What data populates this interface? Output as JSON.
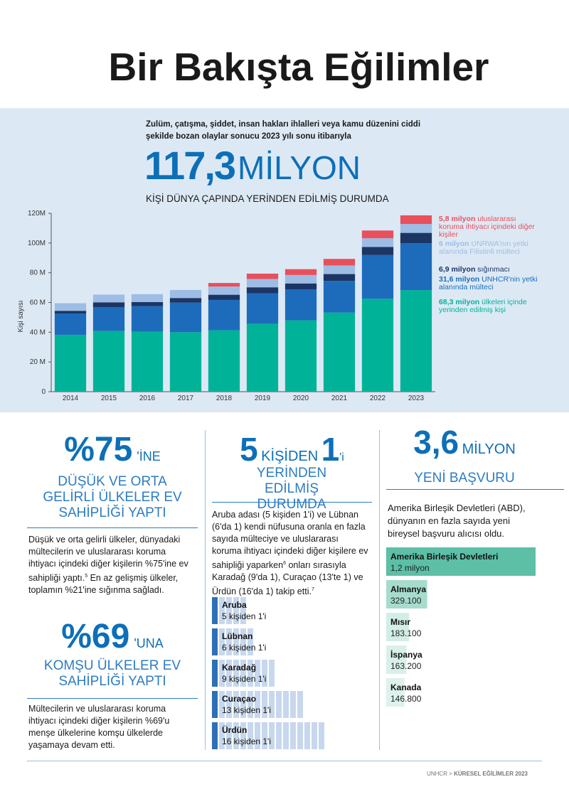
{
  "page": {
    "title": "Bir Bakışta Eğilimler"
  },
  "headline": {
    "intro": "Zulüm, çatışma, şiddet, insan hakları ihlalleri veya kamu düzenini ciddi şekilde bozan olaylar sonucu 2023 yılı sonu itibarıyla",
    "number": "117,3",
    "unit": "MİLYON",
    "caption": "KİŞİ DÜNYA ÇAPINDA YERİNDEN EDİLMİŞ DURUMDA"
  },
  "chart_data": {
    "type": "stacked_bar",
    "ylabel": "Kişi sayısı",
    "categories": [
      "2014",
      "2015",
      "2016",
      "2017",
      "2018",
      "2019",
      "2020",
      "2021",
      "2022",
      "2023"
    ],
    "series": [
      {
        "name": "ülkeleri içinde yerinden edilmiş kişi",
        "color": "#00b398",
        "values": [
          38.2,
          40.8,
          40.3,
          40.0,
          41.3,
          45.7,
          48.0,
          53.2,
          62.5,
          68.3
        ],
        "value_labels": [
          null,
          null,
          null,
          null,
          null,
          null,
          null,
          null,
          null,
          "68,3 milyon"
        ]
      },
      {
        "name": "UNHCR'nin yetki alanında mülteci",
        "color": "#1d6cbc",
        "values": [
          14.4,
          16.1,
          17.2,
          19.9,
          20.4,
          20.4,
          20.7,
          21.3,
          29.4,
          31.6
        ],
        "value_labels": [
          null,
          null,
          null,
          null,
          null,
          null,
          null,
          null,
          null,
          "31,6 milyon"
        ]
      },
      {
        "name": "sığınmacı",
        "color": "#1b3565",
        "values": [
          1.8,
          3.2,
          2.8,
          3.1,
          3.5,
          4.1,
          4.1,
          4.6,
          5.4,
          6.9
        ],
        "value_labels": [
          null,
          null,
          null,
          null,
          null,
          null,
          null,
          null,
          null,
          "6,9 milyon"
        ]
      },
      {
        "name": "UNRWA'nın yetki alanında Filistinli mülteci",
        "color": "#9dbde4",
        "values": [
          5.1,
          5.2,
          5.3,
          5.4,
          5.5,
          5.6,
          5.7,
          5.8,
          5.9,
          6.0
        ],
        "value_labels": [
          null,
          null,
          null,
          null,
          null,
          null,
          null,
          null,
          null,
          "6 milyon"
        ]
      },
      {
        "name": "uluslararası koruma ihtiyacı içindeki diğer kişiler",
        "color": "#e8505b",
        "values": [
          null,
          null,
          null,
          null,
          2.4,
          3.6,
          3.9,
          4.4,
          5.2,
          5.8
        ],
        "value_labels": [
          null,
          null,
          null,
          null,
          null,
          null,
          null,
          null,
          null,
          "5,8 milyon"
        ]
      }
    ],
    "ylim": [
      0,
      120
    ],
    "yticks": [
      0,
      {
        "value": 20,
        "label": "20 M"
      },
      {
        "value": 40,
        "label": "40 M"
      },
      {
        "value": 60,
        "label": "60 M"
      },
      {
        "value": 80,
        "label": "80 M"
      },
      {
        "value": 100,
        "label": "100M"
      },
      {
        "value": 120,
        "label": "120M"
      }
    ]
  },
  "col1": {
    "blocks": [
      {
        "number": "%75",
        "suffix": "'İNE",
        "heading": "DÜŞÜK VE ORTA GELİRLİ ÜLKELER EV SAHİPLİĞİ YAPTI",
        "body": [
          {
            "text": "Düşük ve orta gelirli ülkeler, dünyadaki mültecilerin ve uluslararası koruma ihtiyacı içindeki diğer kişilerin %75'ine ev sahipliği yaptı."
          },
          {
            "note": "5"
          },
          {
            "text": "  En az gelişmiş ülkeler, toplamın %21'ine sığınma sağladı."
          }
        ]
      },
      {
        "number": "%69",
        "suffix": "'UNA",
        "heading": "KOMŞU ÜLKELER EV SAHİPLİĞİ YAPTI",
        "body": [
          {
            "text": "Mültecilerin ve uluslararası koruma ihtiyacı içindeki diğer kişilerin %69'u menşe ülkelerine komşu ülkelerde yaşamaya devam etti."
          }
        ]
      }
    ]
  },
  "col2": {
    "number1": "5",
    "word": "KİŞİDEN",
    "number2": "1",
    "suffix": "'i",
    "heading": "YERİNDEN EDİLMİŞ DURUMDA",
    "body": [
      {
        "text": "Aruba adası (5 kişiden 1'i) ve Lübnan (6'da 1) kendi nüfusuna oranla en fazla sayıda mülteciye ve uluslararası koruma ihtiyacı içindeki diğer kişilere ev sahipliği yaparken"
      },
      {
        "note": "6"
      },
      {
        "text": " onları sırasıyla Karadağ (9'da 1), Curaçao (13'te 1) ve Ürdün (16'da 1) takip etti."
      },
      {
        "note": "7"
      }
    ],
    "ratios": [
      {
        "name": "Aruba",
        "label": "5 kişiden 1'i",
        "value": 5
      },
      {
        "name": "Lübnan",
        "label": "6 kişiden 1'i",
        "value": 6
      },
      {
        "name": "Karadağ",
        "label": "9 kişiden 1'i",
        "value": 9
      },
      {
        "name": "Curaçao",
        "label": "13 kişiden 1'i",
        "value": 13
      },
      {
        "name": "Ürdün",
        "label": "16 kişiden 1'i",
        "value": 16
      }
    ]
  },
  "col3": {
    "number": "3,6",
    "unit": "MİLYON",
    "heading": "YENİ BAŞVURU",
    "body": "Amerika Birleşik Devletleri (ABD), dünyanın en fazla sayıda yeni bireysel başvuru alıcısı oldu.",
    "bars": [
      {
        "name": "Amerika Birleşik Devletleri",
        "value": 1200000,
        "value_label": "1,2 milyon",
        "color": "#5cbfa6"
      },
      {
        "name": "Almanya",
        "value": 329100,
        "value_label": "329.100",
        "color": "#a6dccd"
      },
      {
        "name": "Mısır",
        "value": 183100,
        "value_label": "183.100",
        "color": "#d2eee6"
      },
      {
        "name": "İspanya",
        "value": 163200,
        "value_label": "163.200",
        "color": "#d8f0e9"
      },
      {
        "name": "Kanada",
        "value": 146800,
        "value_label": "146.800",
        "color": "#ddf2ec"
      }
    ]
  },
  "footer": {
    "source": "UNHCR >",
    "title": "KÜRESEL EĞİLİMLER 2023"
  }
}
